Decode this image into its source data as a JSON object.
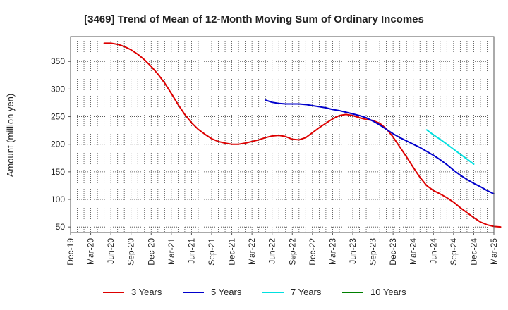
{
  "chart_data": {
    "type": "line",
    "title": "[3469]  Trend of Mean of 12-Month Moving Sum of Ordinary Incomes",
    "xlabel": "",
    "ylabel": "Amount (million yen)",
    "ylim": [
      40,
      395
    ],
    "yticks": [
      50,
      100,
      150,
      200,
      250,
      300,
      350
    ],
    "x_tick_labels": [
      "Dec-19",
      "Mar-20",
      "Jun-20",
      "Sep-20",
      "Dec-20",
      "Mar-21",
      "Jun-21",
      "Sep-21",
      "Dec-21",
      "Mar-22",
      "Jun-22",
      "Sep-22",
      "Dec-22",
      "Mar-23",
      "Jun-23",
      "Sep-23",
      "Dec-23",
      "Mar-24",
      "Jun-24",
      "Sep-24",
      "Dec-24",
      "Mar-25"
    ],
    "x_start": "Dec-19",
    "x_months": 63,
    "grid": true,
    "legend_position": "bottom",
    "series": [
      {
        "name": "3 Years",
        "color": "#dd0000",
        "start": "May-20",
        "values": [
          383,
          383,
          381,
          377,
          371,
          363,
          353,
          341,
          327,
          311,
          292,
          272,
          254,
          239,
          227,
          218,
          210,
          205,
          202,
          200,
          200,
          202,
          205,
          208,
          212,
          215,
          216,
          214,
          209,
          208,
          212,
          221,
          230,
          238,
          246,
          252,
          254,
          252,
          248,
          245,
          243,
          238,
          228,
          213,
          195,
          177,
          158,
          140,
          125,
          116,
          110,
          103,
          95,
          85,
          76,
          67,
          59,
          54,
          51,
          50
        ]
      },
      {
        "name": "5 Years",
        "color": "#0000cc",
        "start": "May-22",
        "values": [
          280,
          276,
          274,
          273,
          273,
          273,
          272,
          270,
          268,
          266,
          263,
          261,
          258,
          255,
          252,
          248,
          242,
          235,
          227,
          219,
          212,
          206,
          200,
          194,
          187,
          180,
          172,
          163,
          153,
          144,
          136,
          129,
          123,
          116,
          110
        ]
      },
      {
        "name": "7 Years",
        "color": "#00e0e0",
        "start": "May-24",
        "values": [
          226,
          217,
          209,
          200,
          191,
          182,
          173,
          164
        ]
      },
      {
        "name": "10 Years",
        "color": "#008000",
        "start": "",
        "values": []
      }
    ]
  }
}
